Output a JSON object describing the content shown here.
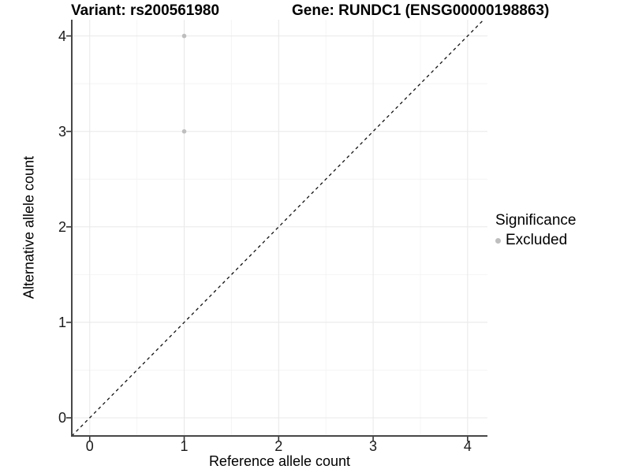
{
  "header": {
    "title_left": "Variant: rs200561980",
    "title_right": "Gene: RUNDC1 (ENSG00000198863)"
  },
  "chart_data": {
    "type": "scatter",
    "title": "Variant: rs200561980  Gene: RUNDC1 (ENSG00000198863)",
    "xlabel": "Reference allele count",
    "ylabel": "Alternative allele count",
    "xlim": [
      -0.19,
      4.21
    ],
    "ylim": [
      -0.19,
      4.17
    ],
    "xticks": [
      0,
      1,
      2,
      3,
      4
    ],
    "yticks": [
      0,
      1,
      2,
      3,
      4
    ],
    "minor_xticks": [
      0.5,
      1.5,
      2.5,
      3.5
    ],
    "minor_yticks": [
      0.5,
      1.5,
      2.5,
      3.5
    ],
    "grid": "major-and-minor",
    "identity_line": {
      "shown": true,
      "style": "dashed",
      "color": "#111111",
      "slope": 1,
      "intercept": 0
    },
    "series": [
      {
        "name": "Excluded",
        "color": "#bebebe",
        "points": [
          {
            "x": 1,
            "y": 4
          },
          {
            "x": 1,
            "y": 3
          }
        ]
      }
    ],
    "legend": {
      "title": "Significance",
      "position": "right",
      "items": [
        {
          "label": "Excluded",
          "color": "#bebebe",
          "marker": "circle"
        }
      ]
    },
    "colors": {
      "background": "#ffffff",
      "grid_major": "#e8e8e8",
      "grid_minor": "#f4f4f4",
      "axis_line": "#474747",
      "tick_mark": "#333333",
      "tick_text": "#1a1a1a"
    }
  }
}
